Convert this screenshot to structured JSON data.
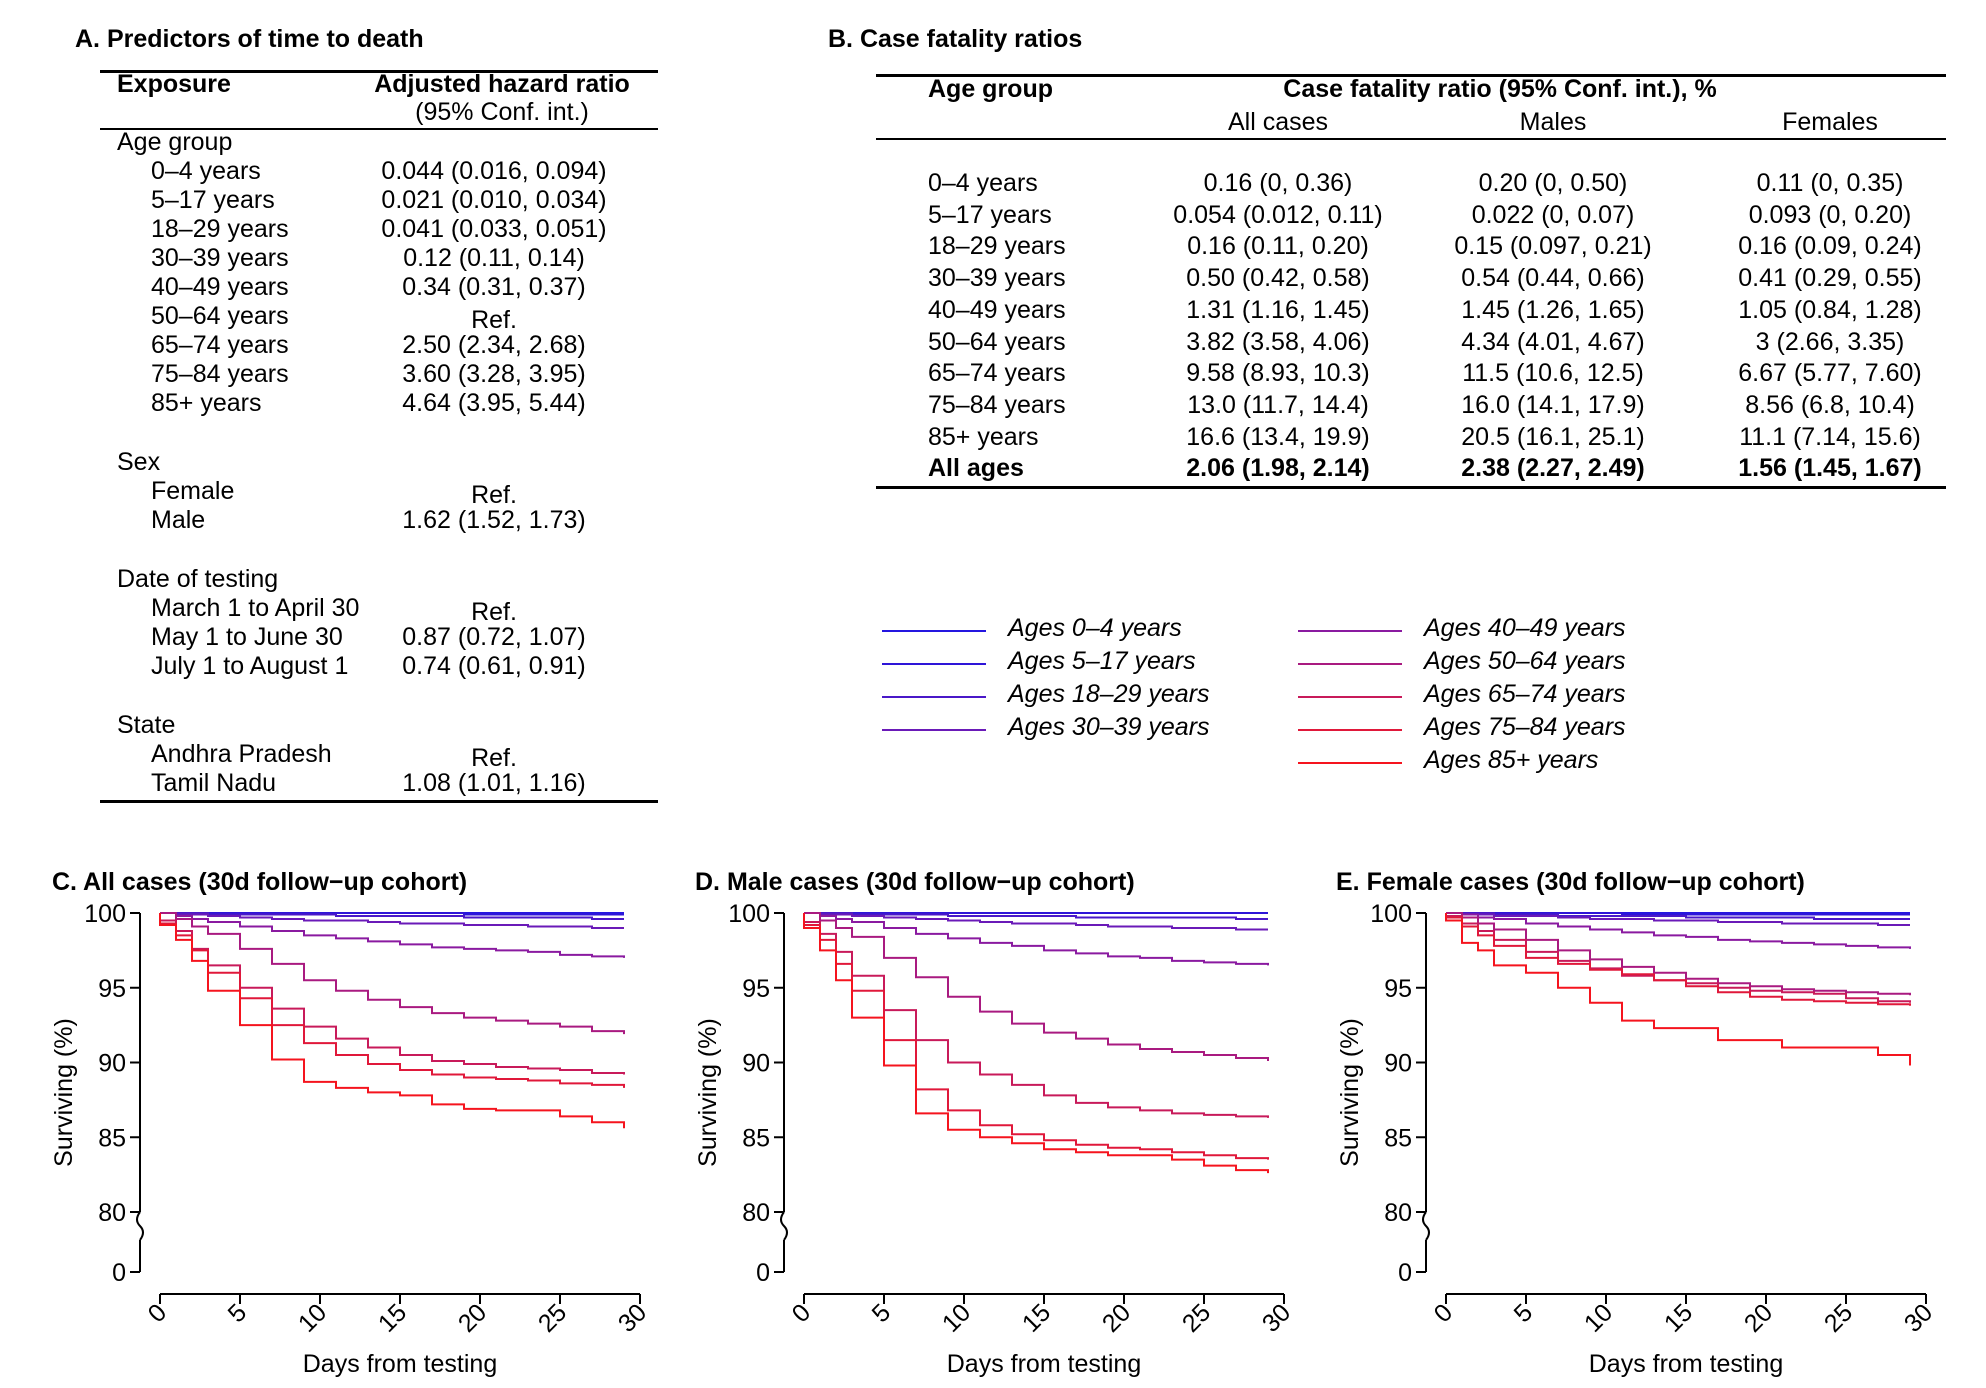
{
  "panelA": {
    "title": "A. Predictors of time to death",
    "header": {
      "col1": "Exposure",
      "col2": "Adjusted hazard ratio",
      "col2sub": "(95% Conf. int.)"
    },
    "groups": [
      {
        "label": "Age group",
        "rows": [
          {
            "label": "0–4 years",
            "value": "0.044 (0.016, 0.094)"
          },
          {
            "label": "5–17 years",
            "value": "0.021 (0.010, 0.034)"
          },
          {
            "label": "18–29 years",
            "value": "0.041 (0.033, 0.051)"
          },
          {
            "label": "30–39 years",
            "value": "0.12 (0.11, 0.14)"
          },
          {
            "label": "40–49 years",
            "value": "0.34 (0.31, 0.37)"
          },
          {
            "label": "50–64 years",
            "value": "Ref."
          },
          {
            "label": "65–74 years",
            "value": "2.50 (2.34, 2.68)"
          },
          {
            "label": "75–84 years",
            "value": "3.60 (3.28, 3.95)"
          },
          {
            "label": "85+ years",
            "value": "4.64 (3.95, 5.44)"
          }
        ]
      },
      {
        "label": "Sex",
        "rows": [
          {
            "label": "Female",
            "value": "Ref."
          },
          {
            "label": "Male",
            "value": "1.62 (1.52, 1.73)"
          }
        ]
      },
      {
        "label": "Date of testing",
        "rows": [
          {
            "label": "March 1 to April 30",
            "value": "Ref."
          },
          {
            "label": "May 1 to June 30",
            "value": "0.87 (0.72, 1.07)"
          },
          {
            "label": "July 1 to August 1",
            "value": "0.74 (0.61, 0.91)"
          }
        ]
      },
      {
        "label": "State",
        "rows": [
          {
            "label": "Andhra Pradesh",
            "value": "Ref."
          },
          {
            "label": "Tamil Nadu",
            "value": "1.08 (1.01, 1.16)"
          }
        ]
      }
    ]
  },
  "panelB": {
    "title": "B. Case fatality ratios",
    "header": {
      "col1": "Age group",
      "span": "Case fatality ratio (95% Conf. int.), %",
      "all": "All cases",
      "males": "Males",
      "females": "Females"
    },
    "rows": [
      {
        "label": "0–4 years",
        "all": "0.16 (0, 0.36)",
        "males": "0.20 (0, 0.50)",
        "females": "0.11 (0, 0.35)"
      },
      {
        "label": "5–17 years",
        "all": "0.054 (0.012, 0.11)",
        "males": "0.022 (0, 0.07)",
        "females": "0.093 (0, 0.20)"
      },
      {
        "label": "18–29 years",
        "all": "0.16 (0.11, 0.20)",
        "males": "0.15 (0.097, 0.21)",
        "females": "0.16 (0.09, 0.24)"
      },
      {
        "label": "30–39 years",
        "all": "0.50 (0.42, 0.58)",
        "males": "0.54 (0.44, 0.66)",
        "females": "0.41 (0.29, 0.55)"
      },
      {
        "label": "40–49 years",
        "all": "1.31 (1.16, 1.45)",
        "males": "1.45 (1.26, 1.65)",
        "females": "1.05 (0.84, 1.28)"
      },
      {
        "label": "50–64 years",
        "all": "3.82 (3.58, 4.06)",
        "males": "4.34 (4.01, 4.67)",
        "females": "3 (2.66, 3.35)"
      },
      {
        "label": "65–74 years",
        "all": "9.58 (8.93, 10.3)",
        "males": "11.5 (10.6, 12.5)",
        "females": "6.67 (5.77, 7.60)"
      },
      {
        "label": "75–84 years",
        "all": "13.0 (11.7, 14.4)",
        "males": "16.0 (14.1, 17.9)",
        "females": "8.56 (6.8, 10.4)"
      },
      {
        "label": "85+ years",
        "all": "16.6 (13.4, 19.9)",
        "males": "20.5 (16.1, 25.1)",
        "females": "11.1 (7.14, 15.6)"
      },
      {
        "label": "All ages",
        "all": "2.06 (1.98, 2.14)",
        "males": "2.38 (2.27, 2.49)",
        "females": "1.56 (1.45, 1.67)"
      }
    ]
  },
  "legend": [
    {
      "name": "Ages 0–4 years",
      "color": "#2416e0"
    },
    {
      "name": "Ages 5–17 years",
      "color": "#2e15d8"
    },
    {
      "name": "Ages 18–29 years",
      "color": "#4a18c8"
    },
    {
      "name": "Ages 30–39 years",
      "color": "#6a1ab8"
    },
    {
      "name": "Ages 40–49 years",
      "color": "#8a1aa0"
    },
    {
      "name": "Ages 50–64 years",
      "color": "#a91a80"
    },
    {
      "name": "Ages 65–74 years",
      "color": "#c81a5a"
    },
    {
      "name": "Ages 75–84 years",
      "color": "#e0183a"
    },
    {
      "name": "Ages 85+ years",
      "color": "#f5141e"
    }
  ],
  "chart_data": [
    {
      "type": "line",
      "title": "C. All cases (30d follow−up cohort)",
      "xlabel": "Days from testing",
      "ylabel": "Surviving (%)",
      "xlim": [
        0,
        30
      ],
      "ylim": [
        0,
        100
      ],
      "xticks": [
        "0",
        "5",
        "10",
        "15",
        "20",
        "25",
        "30"
      ],
      "yticks": [
        "0",
        "80",
        "85",
        "90",
        "95",
        "100"
      ],
      "x": [
        0,
        1,
        2,
        3,
        5,
        7,
        9,
        11,
        13,
        15,
        17,
        19,
        21,
        23,
        25,
        27,
        29
      ],
      "series": [
        {
          "name": "Ages 0–4 years",
          "values": [
            100,
            100,
            100,
            100,
            100,
            100,
            100,
            100,
            100,
            100,
            100,
            100,
            100,
            100,
            100,
            100,
            100
          ]
        },
        {
          "name": "Ages 5–17 years",
          "values": [
            100,
            100,
            100,
            100,
            100,
            100,
            100,
            100,
            100,
            100,
            100,
            99.9,
            99.9,
            99.9,
            99.9,
            99.9,
            99.9
          ]
        },
        {
          "name": "Ages 18–29 years",
          "values": [
            100,
            100,
            100,
            99.9,
            99.9,
            99.9,
            99.9,
            99.8,
            99.8,
            99.8,
            99.8,
            99.7,
            99.7,
            99.7,
            99.7,
            99.6,
            99.6
          ]
        },
        {
          "name": "Ages 30–39 years",
          "values": [
            100,
            99.9,
            99.9,
            99.8,
            99.7,
            99.6,
            99.5,
            99.5,
            99.4,
            99.3,
            99.3,
            99.2,
            99.2,
            99.1,
            99.1,
            99.0,
            99.0
          ]
        },
        {
          "name": "Ages 40–49 years",
          "values": [
            100,
            99.8,
            99.6,
            99.4,
            99.1,
            98.8,
            98.5,
            98.3,
            98.1,
            97.9,
            97.7,
            97.6,
            97.5,
            97.4,
            97.2,
            97.1,
            97.0
          ]
        },
        {
          "name": "Ages 50–64 years",
          "values": [
            100,
            99.6,
            99.1,
            98.6,
            97.6,
            96.6,
            95.5,
            94.8,
            94.2,
            93.7,
            93.3,
            93.0,
            92.8,
            92.6,
            92.4,
            92.1,
            91.9
          ]
        },
        {
          "name": "Ages 65–74 years",
          "values": [
            99.5,
            98.8,
            97.6,
            96.5,
            95.0,
            93.6,
            92.4,
            91.6,
            91.0,
            90.5,
            90.1,
            89.9,
            89.7,
            89.6,
            89.5,
            89.3,
            89.2
          ]
        },
        {
          "name": "Ages 75–84 years",
          "values": [
            99.3,
            98.5,
            97.5,
            96.0,
            94.3,
            92.5,
            91.3,
            90.5,
            89.9,
            89.5,
            89.2,
            89.0,
            88.9,
            88.8,
            88.6,
            88.5,
            88.3
          ]
        },
        {
          "name": "Ages 85+ years",
          "values": [
            99.2,
            98.2,
            96.8,
            94.8,
            92.5,
            90.2,
            88.7,
            88.3,
            88.0,
            87.8,
            87.2,
            86.9,
            86.8,
            86.8,
            86.4,
            86.0,
            85.6
          ]
        }
      ]
    },
    {
      "type": "line",
      "title": "D. Male cases (30d follow−up cohort)",
      "xlabel": "Days from testing",
      "ylabel": "Surviving (%)",
      "xlim": [
        0,
        30
      ],
      "ylim": [
        0,
        100
      ],
      "xticks": [
        "0",
        "5",
        "10",
        "15",
        "20",
        "25",
        "30"
      ],
      "yticks": [
        "0",
        "80",
        "85",
        "90",
        "95",
        "100"
      ],
      "x": [
        0,
        1,
        2,
        3,
        5,
        7,
        9,
        11,
        13,
        15,
        17,
        19,
        21,
        23,
        25,
        27,
        29
      ],
      "series": [
        {
          "name": "Ages 0–4 years",
          "values": [
            100,
            100,
            100,
            100,
            100,
            100,
            100,
            100,
            100,
            100,
            100,
            100,
            100,
            100,
            100,
            100,
            100
          ]
        },
        {
          "name": "Ages 5–17 years",
          "values": [
            100,
            100,
            100,
            100,
            100,
            100,
            100,
            100,
            100,
            100,
            100,
            100,
            100,
            100,
            100,
            100,
            100
          ]
        },
        {
          "name": "Ages 18–29 years",
          "values": [
            100,
            100,
            100,
            99.9,
            99.9,
            99.9,
            99.8,
            99.8,
            99.8,
            99.8,
            99.7,
            99.7,
            99.7,
            99.7,
            99.7,
            99.6,
            99.6
          ]
        },
        {
          "name": "Ages 30–39 years",
          "values": [
            100,
            99.9,
            99.9,
            99.8,
            99.7,
            99.6,
            99.5,
            99.4,
            99.3,
            99.3,
            99.2,
            99.1,
            99.1,
            99.0,
            99.0,
            98.9,
            98.9
          ]
        },
        {
          "name": "Ages 40–49 years",
          "values": [
            100,
            99.8,
            99.6,
            99.4,
            99.0,
            98.6,
            98.3,
            98.0,
            97.8,
            97.5,
            97.3,
            97.1,
            97.0,
            96.8,
            96.7,
            96.6,
            96.5
          ]
        },
        {
          "name": "Ages 50–64 years",
          "values": [
            100,
            99.5,
            99.0,
            98.4,
            97.0,
            95.7,
            94.4,
            93.4,
            92.6,
            92.0,
            91.6,
            91.2,
            90.9,
            90.7,
            90.5,
            90.3,
            90.1
          ]
        },
        {
          "name": "Ages 65–74 years",
          "values": [
            99.4,
            98.6,
            97.4,
            95.8,
            93.5,
            91.5,
            90.0,
            89.2,
            88.5,
            87.8,
            87.3,
            87.0,
            86.8,
            86.6,
            86.5,
            86.4,
            86.3
          ]
        },
        {
          "name": "Ages 75–84 years",
          "values": [
            99.2,
            98.2,
            96.6,
            94.8,
            91.5,
            88.2,
            86.8,
            85.8,
            85.2,
            84.8,
            84.5,
            84.3,
            84.2,
            84.0,
            83.8,
            83.6,
            83.5
          ]
        },
        {
          "name": "Ages 85+ years",
          "values": [
            99.0,
            97.5,
            95.5,
            93.0,
            89.8,
            86.6,
            85.5,
            85.0,
            84.6,
            84.2,
            84.0,
            83.8,
            83.8,
            83.5,
            83.1,
            82.8,
            82.6
          ]
        }
      ]
    },
    {
      "type": "line",
      "title": "E. Female cases (30d follow−up cohort)",
      "xlabel": "Days from testing",
      "ylabel": "Surviving (%)",
      "xlim": [
        0,
        30
      ],
      "ylim": [
        0,
        100
      ],
      "xticks": [
        "0",
        "5",
        "10",
        "15",
        "20",
        "25",
        "30"
      ],
      "yticks": [
        "0",
        "80",
        "85",
        "90",
        "95",
        "100"
      ],
      "x": [
        0,
        1,
        2,
        3,
        5,
        7,
        9,
        11,
        13,
        15,
        17,
        19,
        21,
        23,
        25,
        27,
        29
      ],
      "series": [
        {
          "name": "Ages 0–4 years",
          "values": [
            100,
            100,
            100,
            100,
            100,
            100,
            100,
            100,
            100,
            100,
            100,
            100,
            100,
            100,
            100,
            100,
            100
          ]
        },
        {
          "name": "Ages 5–17 years",
          "values": [
            100,
            100,
            100,
            100,
            100,
            100,
            100,
            99.9,
            99.9,
            99.9,
            99.9,
            99.9,
            99.9,
            99.9,
            99.9,
            99.9,
            99.9
          ]
        },
        {
          "name": "Ages 18–29 years",
          "values": [
            100,
            100,
            100,
            99.9,
            99.9,
            99.8,
            99.8,
            99.8,
            99.8,
            99.7,
            99.7,
            99.7,
            99.7,
            99.6,
            99.6,
            99.6,
            99.6
          ]
        },
        {
          "name": "Ages 30–39 years",
          "values": [
            100,
            99.9,
            99.9,
            99.8,
            99.8,
            99.7,
            99.6,
            99.6,
            99.5,
            99.5,
            99.4,
            99.4,
            99.3,
            99.3,
            99.3,
            99.2,
            99.2
          ]
        },
        {
          "name": "Ages 40–49 years",
          "values": [
            100,
            99.9,
            99.7,
            99.6,
            99.3,
            99.1,
            98.9,
            98.7,
            98.5,
            98.4,
            98.2,
            98.1,
            98.0,
            97.9,
            97.8,
            97.7,
            97.6
          ]
        },
        {
          "name": "Ages 50–64 years",
          "values": [
            100,
            99.7,
            99.3,
            98.9,
            98.2,
            97.5,
            96.9,
            96.4,
            96.0,
            95.6,
            95.3,
            95.1,
            94.9,
            94.8,
            94.7,
            94.6,
            94.5
          ]
        },
        {
          "name": "Ages 65–74 years",
          "values": [
            99.8,
            99.3,
            98.8,
            98.2,
            97.4,
            96.8,
            96.3,
            95.8,
            95.5,
            95.3,
            95.0,
            94.8,
            94.7,
            94.6,
            94.3,
            94.1,
            94.0
          ]
        },
        {
          "name": "Ages 75–84 years",
          "values": [
            99.7,
            99.1,
            98.5,
            97.8,
            97.0,
            96.6,
            96.2,
            95.9,
            95.5,
            95.1,
            94.7,
            94.4,
            94.2,
            94.1,
            94.0,
            93.9,
            93.8
          ]
        },
        {
          "name": "Ages 85+ years",
          "values": [
            99.5,
            98.0,
            97.5,
            96.5,
            96.0,
            95.0,
            94.0,
            92.8,
            92.3,
            92.3,
            91.5,
            91.5,
            91.0,
            91.0,
            91.0,
            90.5,
            89.8
          ]
        }
      ]
    }
  ]
}
